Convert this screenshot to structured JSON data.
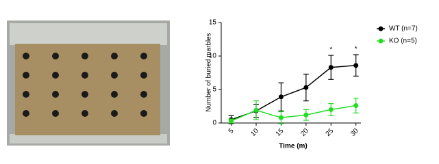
{
  "chart_data": {
    "type": "line",
    "xlabel": "Time (m)",
    "ylabel": "Number of buried marbles",
    "x": [
      5,
      10,
      15,
      20,
      25,
      30
    ],
    "series": [
      {
        "name": "WT (n=7)",
        "color": "#000000",
        "values": [
          0.5,
          1.8,
          3.9,
          5.3,
          8.3,
          8.6
        ],
        "errors": [
          0.6,
          1.0,
          2.1,
          2.0,
          1.8,
          1.6
        ]
      },
      {
        "name": "KO (n=5)",
        "color": "#22dd22",
        "values": [
          0.3,
          1.9,
          0.8,
          1.2,
          2.0,
          2.6
        ],
        "errors": [
          0.3,
          1.4,
          0.9,
          0.8,
          0.9,
          1.1
        ]
      }
    ],
    "annotations": [
      {
        "x": 25,
        "text": "*"
      },
      {
        "x": 30,
        "text": "*"
      }
    ],
    "xlim": [
      3,
      31
    ],
    "xticks": [
      5,
      10,
      15,
      20,
      25,
      30
    ],
    "ylim": [
      0,
      15
    ],
    "yticks": [
      0,
      5,
      10,
      15
    ],
    "grid": false,
    "legend": "right"
  }
}
